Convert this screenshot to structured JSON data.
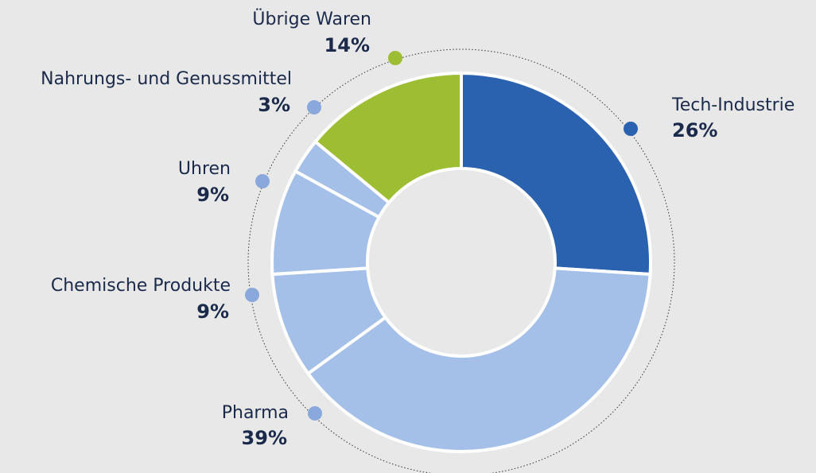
{
  "chart_data": {
    "type": "pie",
    "categories": [
      "Tech-Industrie",
      "Pharma",
      "Chemische Produkte",
      "Uhren",
      "Nahrungs- und Genussmittel",
      "Übrige Waren"
    ],
    "values": [
      26,
      39,
      9,
      9,
      3,
      14
    ],
    "value_labels": [
      "26%",
      "39%",
      "9%",
      "9%",
      "3%",
      "14%"
    ],
    "colors": [
      "#2b62b0",
      "#a4c0e8",
      "#a4c0e8",
      "#a4c0e8",
      "#a4c0e8",
      "#9dbd32"
    ],
    "marker_colors": [
      "#2b62b0",
      "#8aa8dc",
      "#8aa8dc",
      "#8aa8dc",
      "#8aa8dc",
      "#9dbd32"
    ]
  }
}
